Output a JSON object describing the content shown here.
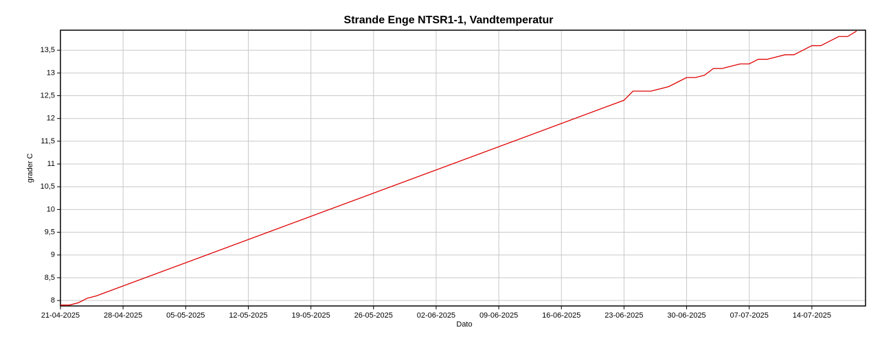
{
  "chart_data": {
    "type": "line",
    "title": "Strande Enge NTSR1-1, Vandtemperatur",
    "xlabel": "Dato",
    "ylabel": "grader C",
    "x": [
      "21-04-2025",
      "22-04-2025",
      "23-04-2025",
      "24-04-2025",
      "25-04-2025",
      "23-06-2025",
      "24-06-2025",
      "25-06-2025",
      "26-06-2025",
      "27-06-2025",
      "28-06-2025",
      "29-06-2025",
      "30-06-2025",
      "01-07-2025",
      "02-07-2025",
      "03-07-2025",
      "04-07-2025",
      "05-07-2025",
      "06-07-2025",
      "07-07-2025",
      "08-07-2025",
      "09-07-2025",
      "10-07-2025",
      "11-07-2025",
      "12-07-2025",
      "13-07-2025",
      "14-07-2025",
      "15-07-2025",
      "16-07-2025",
      "17-07-2025",
      "18-07-2025",
      "19-07-2025"
    ],
    "series": [
      {
        "name": "Vandtemperatur",
        "color": "#e00000",
        "values": [
          7.9,
          7.9,
          7.95,
          8.05,
          8.1,
          12.4,
          12.6,
          12.6,
          12.6,
          12.65,
          12.7,
          12.8,
          12.9,
          12.9,
          12.95,
          13.1,
          13.1,
          13.15,
          13.2,
          13.2,
          13.3,
          13.3,
          13.35,
          13.4,
          13.4,
          13.5,
          13.6,
          13.6,
          13.7,
          13.8,
          13.8,
          13.92
        ]
      }
    ],
    "xlim": [
      "21-04-2025",
      "20-07-2025"
    ],
    "xticks": [
      "21-04-2025",
      "28-04-2025",
      "05-05-2025",
      "12-05-2025",
      "19-05-2025",
      "26-05-2025",
      "02-06-2025",
      "09-06-2025",
      "16-06-2025",
      "23-06-2025",
      "30-06-2025",
      "07-07-2025",
      "14-07-2025"
    ],
    "ylim": [
      7.88,
      13.94
    ],
    "yticks": [
      8,
      {
        "value": 8.5,
        "label": "8,5"
      },
      9,
      {
        "value": 9.5,
        "label": "9,5"
      },
      10,
      {
        "value": 10.5,
        "label": "10,5"
      },
      11,
      {
        "value": 11.5,
        "label": "11,5"
      },
      12,
      {
        "value": 12.5,
        "label": "12,5"
      },
      13,
      {
        "value": 13.5,
        "label": "13,5"
      }
    ],
    "grid": true
  }
}
